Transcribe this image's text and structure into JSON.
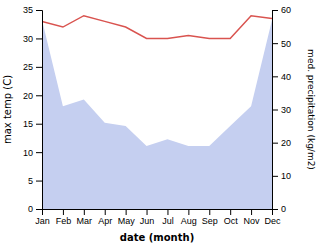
{
  "chart_data": {
    "type": "line",
    "categories": [
      "Jan",
      "Feb",
      "Mar",
      "Apr",
      "May",
      "Jun",
      "Jul",
      "Aug",
      "Sep",
      "Oct",
      "Nov",
      "Dec"
    ],
    "xlabel": "date (month)",
    "ylabel": "max temp (C)",
    "y2label": "med. precipitation (kg/m2)",
    "series": [
      {
        "type": "area",
        "axis": "y2",
        "color": "#c5cff0",
        "values": [
          57,
          31,
          33,
          26,
          25,
          19,
          21,
          19,
          19,
          25,
          31,
          57
        ]
      },
      {
        "type": "line",
        "color": "#d9534f",
        "values": [
          33,
          32,
          34,
          33,
          32,
          30,
          30,
          30.5,
          30,
          30,
          34,
          33.5
        ]
      }
    ],
    "ylim": [
      0,
      35
    ],
    "yticks": [
      0,
      5,
      10,
      15,
      20,
      25,
      30,
      35
    ],
    "y2lim": [
      0,
      60
    ],
    "y2ticks": [
      0,
      10,
      20,
      30,
      40,
      50,
      60
    ],
    "grid": false
  }
}
